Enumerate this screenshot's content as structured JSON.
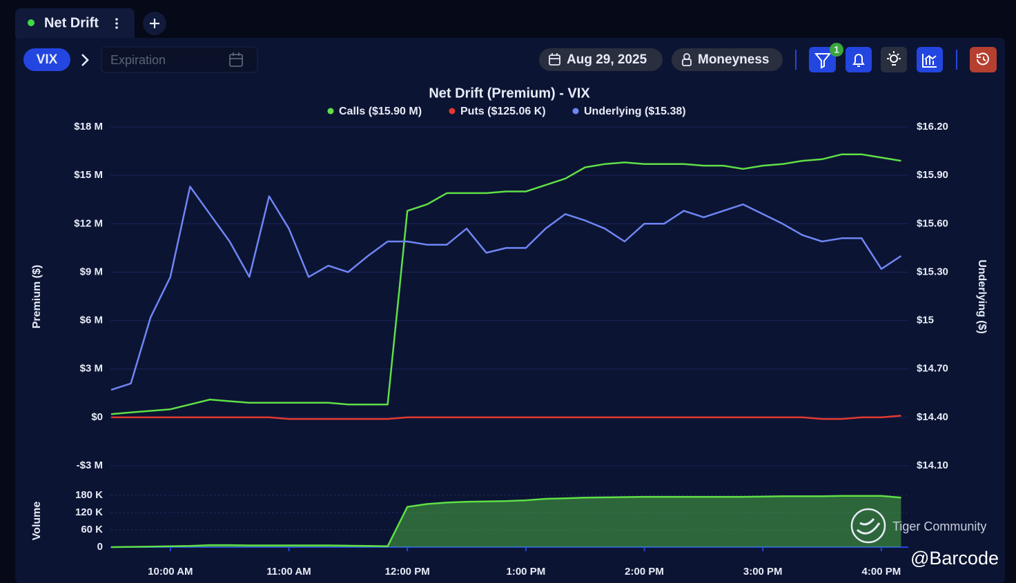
{
  "tab": {
    "title": "Net Drift"
  },
  "toolbar": {
    "symbol": "VIX",
    "expiration_placeholder": "Expiration",
    "date": "Aug 29, 2025",
    "moneyness": "Moneyness",
    "filter_badge": "1"
  },
  "watermark": {
    "brand": "Tiger Community",
    "handle": "@Barcode"
  },
  "chart_data": [
    {
      "type": "line",
      "title": "Net Drift (Premium) - VIX",
      "ylabel": "Premium ($)",
      "y2label": "Underlying ($)",
      "ylim": [
        -3,
        18
      ],
      "yticks": [
        {
          "value": 18,
          "label": "$18 M"
        },
        {
          "value": 15,
          "label": "$15 M"
        },
        {
          "value": 12,
          "label": "$12 M"
        },
        {
          "value": 9,
          "label": "$9 M"
        },
        {
          "value": 6,
          "label": "$6 M"
        },
        {
          "value": 3,
          "label": "$3 M"
        },
        {
          "value": 0,
          "label": "$0"
        },
        {
          "value": -3,
          "label": "-$3 M"
        }
      ],
      "y2lim": [
        14.1,
        16.2
      ],
      "y2ticks": [
        {
          "value": 16.2,
          "label": "$16.20"
        },
        {
          "value": 15.9,
          "label": "$15.90"
        },
        {
          "value": 15.6,
          "label": "$15.60"
        },
        {
          "value": 15.3,
          "label": "$15.30"
        },
        {
          "value": 15,
          "label": "$15"
        },
        {
          "value": 14.7,
          "label": "$14.70"
        },
        {
          "value": 14.4,
          "label": "$14.40"
        },
        {
          "value": 14.1,
          "label": "$14.10"
        }
      ],
      "grid": true,
      "series": [
        {
          "name": "Calls ($15.90 M)",
          "color": "#5fe046",
          "values": [
            0.2,
            0.3,
            0.4,
            0.5,
            0.8,
            1.1,
            1.0,
            0.9,
            0.9,
            0.9,
            0.9,
            0.9,
            0.8,
            0.8,
            0.8,
            12.8,
            13.2,
            13.9,
            13.9,
            13.9,
            14.0,
            14.0,
            14.4,
            14.8,
            15.5,
            15.7,
            15.8,
            15.7,
            15.7,
            15.7,
            15.6,
            15.6,
            15.4,
            15.6,
            15.7,
            15.9,
            16.0,
            16.3,
            16.3,
            16.1,
            15.9
          ]
        },
        {
          "name": "Puts ($125.06 K)",
          "color": "#e5392f",
          "values": [
            0,
            0,
            0,
            0,
            0,
            0,
            0,
            0,
            0,
            -0.1,
            -0.1,
            -0.1,
            -0.1,
            -0.1,
            -0.1,
            0,
            0,
            0,
            0,
            0,
            0,
            0,
            0,
            0,
            0,
            0,
            0,
            0,
            0,
            0,
            0,
            0,
            0,
            0,
            0,
            0,
            -0.1,
            -0.1,
            0,
            0,
            0.1
          ]
        },
        {
          "name": "Underlying ($15.38)",
          "color": "#6f86f5",
          "axis": "y2",
          "values": [
            14.57,
            14.61,
            15.02,
            15.27,
            15.83,
            15.66,
            15.49,
            15.27,
            15.77,
            15.57,
            15.27,
            15.34,
            15.3,
            15.4,
            15.49,
            15.49,
            15.47,
            15.47,
            15.57,
            15.42,
            15.45,
            15.45,
            15.57,
            15.66,
            15.62,
            15.57,
            15.49,
            15.6,
            15.6,
            15.68,
            15.64,
            15.68,
            15.72,
            15.66,
            15.6,
            15.53,
            15.49,
            15.51,
            15.51,
            15.32,
            15.4
          ]
        }
      ]
    },
    {
      "type": "area",
      "ylabel": "Volume",
      "categories": [
        null,
        null,
        null,
        "10:00 AM",
        null,
        null,
        null,
        null,
        null,
        "11:00 AM",
        null,
        null,
        null,
        null,
        null,
        "12:00 PM",
        null,
        null,
        null,
        null,
        null,
        "1:00 PM",
        null,
        null,
        null,
        null,
        null,
        "2:00 PM",
        null,
        null,
        null,
        null,
        null,
        "3:00 PM",
        null,
        null,
        null,
        null,
        null,
        "4:00 PM",
        null
      ],
      "ylim": [
        0,
        180
      ],
      "yticks": [
        {
          "value": 180,
          "label": "180 K"
        },
        {
          "value": 120,
          "label": "120 K"
        },
        {
          "value": 60,
          "label": "60 K"
        },
        0
      ],
      "grid": true,
      "series": [
        {
          "color": "#5fe046",
          "values": [
            0,
            1,
            2,
            3,
            4,
            7,
            7,
            6,
            6,
            6,
            6,
            6,
            5,
            4,
            3,
            140,
            150,
            155,
            158,
            159,
            160,
            163,
            168,
            170,
            172,
            173,
            174,
            175,
            175,
            175,
            175,
            175,
            175,
            176,
            177,
            177,
            177,
            178,
            178,
            178,
            172
          ]
        }
      ]
    }
  ]
}
